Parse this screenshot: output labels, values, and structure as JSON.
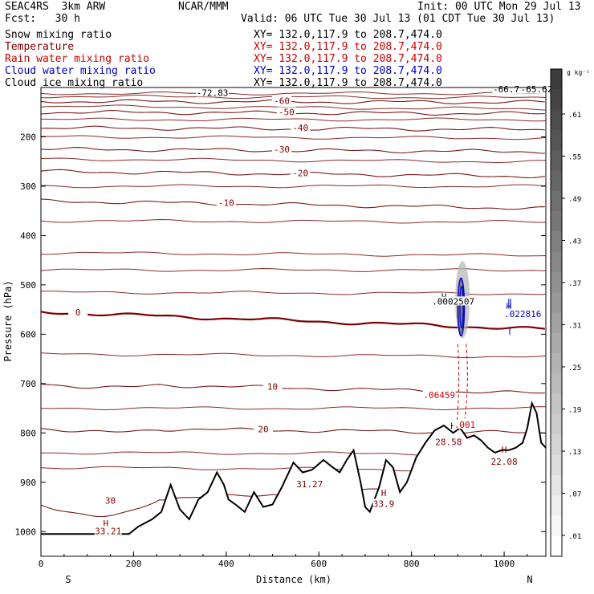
{
  "header": {
    "line1_left": "SEAC4RS  3km ARW",
    "line1_center": "NCAR/MMM",
    "line1_right": "Init: 00 UTC Mon 29 Jul 13",
    "line2_left": "Fcst:   30 h",
    "line2_right": "Valid: 06 UTC Tue 30 Jul 13 (01 CDT Tue 30 Jul 13)",
    "fields": [
      {
        "label": "Snow mixing ratio",
        "color": "#000000"
      },
      {
        "label": "Temperature",
        "color": "#800000"
      },
      {
        "label": "Rain water mixing ratio",
        "color": "#cc0000"
      },
      {
        "label": "Cloud water mixing ratio",
        "color": "#0000cc"
      },
      {
        "label": "Cloud ice mixing ratio",
        "color": "#000000"
      }
    ],
    "xsec": "XY= 132.0,117.9 to 208.7,474.0"
  },
  "chart_data": {
    "type": "cross-section",
    "xlabel": "Distance (km)",
    "ylabel": "Pressure (hPa)",
    "xlim": [
      0,
      1090
    ],
    "ylim": [
      1050,
      100
    ],
    "x_ticks": [
      0,
      200,
      400,
      600,
      800,
      1000
    ],
    "y_ticks": [
      200,
      300,
      400,
      500,
      600,
      700,
      800,
      900,
      1000
    ],
    "x_end_labels": {
      "left": "S",
      "right": "N"
    },
    "colorbar": {
      "unit": "g kg⁻¹",
      "labels": [
        ".61",
        ".55",
        ".49",
        ".43",
        ".37",
        ".31",
        ".25",
        ".19",
        ".13",
        ".07",
        ".01"
      ]
    },
    "isotherms": [
      {
        "value": -60,
        "labels": [
          {
            "x": 520,
            "text": "-60"
          }
        ]
      },
      {
        "value": -50,
        "labels": [
          {
            "x": 530,
            "text": "-50"
          }
        ]
      },
      {
        "value": -40,
        "labels": [
          {
            "x": 560,
            "text": "-40"
          }
        ]
      },
      {
        "value": -30,
        "labels": [
          {
            "x": 520,
            "text": "-30"
          }
        ]
      },
      {
        "value": -20,
        "labels": [
          {
            "x": 560,
            "text": "-20"
          }
        ]
      },
      {
        "value": -10,
        "labels": [
          {
            "x": 400,
            "text": "-10"
          }
        ]
      },
      {
        "value": 0,
        "labels": [
          {
            "x": 80,
            "text": "0"
          }
        ]
      },
      {
        "value": 10,
        "labels": [
          {
            "x": 500,
            "text": "10"
          }
        ]
      },
      {
        "value": 20,
        "labels": [
          {
            "x": 480,
            "text": "20"
          }
        ]
      },
      {
        "value": 30,
        "labels": [
          {
            "x": 150,
            "text": "30"
          }
        ]
      }
    ],
    "annotations": [
      {
        "x": 370,
        "p": 112,
        "text": "-72.83",
        "color": "#000000"
      },
      {
        "x": 1010,
        "p": 105,
        "text": "-66.78",
        "color": "#000000"
      },
      {
        "x": 1070,
        "p": 105,
        "text": "-65.62",
        "color": "#000000"
      },
      {
        "x": 890,
        "p": 535,
        "text": ".0002507",
        "color": "#000000"
      },
      {
        "x": 1040,
        "p": 560,
        "text": ".022816",
        "color": "#0000cc"
      },
      {
        "x": 860,
        "p": 725,
        "text": ".06459",
        "color": "#cc0000"
      },
      {
        "x": 915,
        "p": 785,
        "text": ".001",
        "color": "#cc0000"
      },
      {
        "x": 880,
        "p": 820,
        "text": "28.58",
        "color": "#800000"
      },
      {
        "x": 1000,
        "p": 860,
        "text": "22.08",
        "color": "#800000"
      },
      {
        "x": 580,
        "p": 905,
        "text": "31.27",
        "color": "#800000"
      },
      {
        "x": 740,
        "p": 945,
        "text": "33.9",
        "color": "#800000"
      },
      {
        "x": 145,
        "p": 1000,
        "text": "33.21",
        "color": "#800000"
      }
    ],
    "highs": [
      {
        "x": 870,
        "p": 530
      },
      {
        "x": 1010,
        "p": 550
      },
      {
        "x": 890,
        "p": 792
      },
      {
        "x": 1000,
        "p": 840
      },
      {
        "x": 740,
        "p": 928
      },
      {
        "x": 140,
        "p": 990
      }
    ],
    "terrain": [
      [
        0,
        1005
      ],
      [
        190,
        1005
      ],
      [
        210,
        990
      ],
      [
        240,
        975
      ],
      [
        260,
        960
      ],
      [
        280,
        905
      ],
      [
        300,
        955
      ],
      [
        320,
        975
      ],
      [
        340,
        935
      ],
      [
        360,
        920
      ],
      [
        380,
        880
      ],
      [
        395,
        905
      ],
      [
        405,
        935
      ],
      [
        420,
        945
      ],
      [
        440,
        960
      ],
      [
        460,
        920
      ],
      [
        480,
        950
      ],
      [
        500,
        945
      ],
      [
        520,
        910
      ],
      [
        545,
        860
      ],
      [
        565,
        880
      ],
      [
        585,
        875
      ],
      [
        610,
        855
      ],
      [
        630,
        870
      ],
      [
        645,
        880
      ],
      [
        660,
        855
      ],
      [
        675,
        835
      ],
      [
        690,
        900
      ],
      [
        700,
        950
      ],
      [
        710,
        960
      ],
      [
        720,
        935
      ],
      [
        730,
        910
      ],
      [
        745,
        855
      ],
      [
        760,
        870
      ],
      [
        775,
        920
      ],
      [
        790,
        900
      ],
      [
        810,
        850
      ],
      [
        830,
        820
      ],
      [
        850,
        795
      ],
      [
        870,
        785
      ],
      [
        890,
        800
      ],
      [
        905,
        790
      ],
      [
        920,
        810
      ],
      [
        935,
        805
      ],
      [
        950,
        815
      ],
      [
        965,
        830
      ],
      [
        980,
        840
      ],
      [
        995,
        835
      ],
      [
        1010,
        835
      ],
      [
        1025,
        830
      ],
      [
        1040,
        820
      ],
      [
        1050,
        790
      ],
      [
        1060,
        740
      ],
      [
        1070,
        760
      ],
      [
        1080,
        820
      ],
      [
        1090,
        830
      ]
    ]
  }
}
